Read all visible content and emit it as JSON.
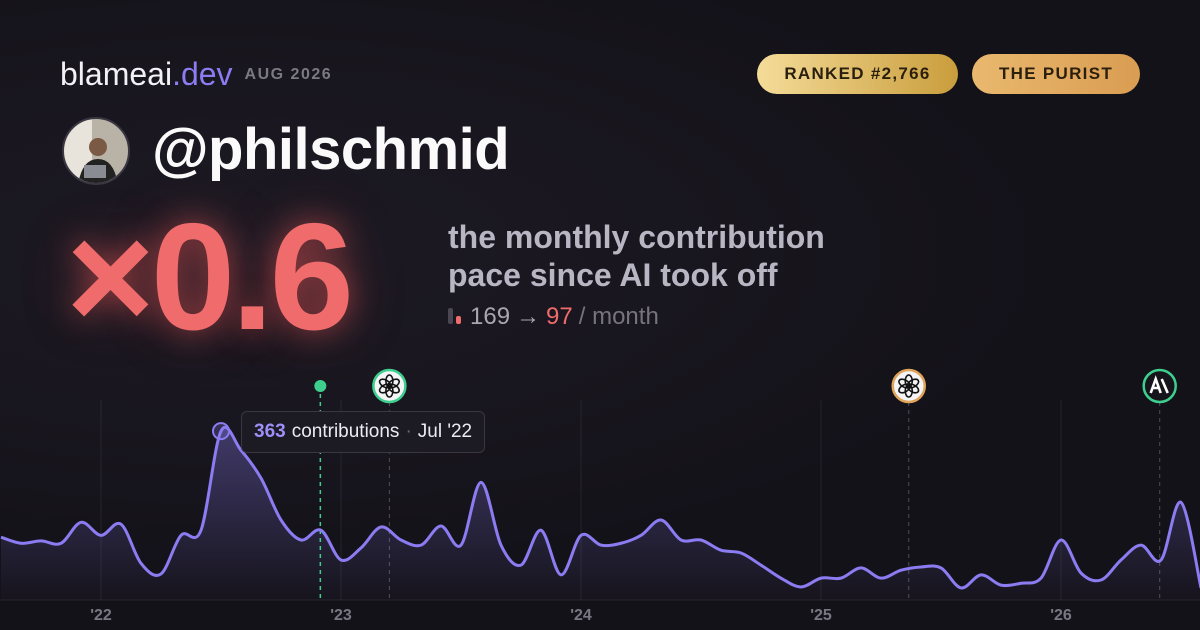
{
  "brand": {
    "name": "blameai",
    "tld": ".dev",
    "date": "AUG 2026"
  },
  "badges": [
    "RANKED #2,766",
    "THE PURIST"
  ],
  "handle": "@philschmid",
  "multiplier": "×0.6",
  "description": "the monthly contribution pace since AI took off",
  "pace": {
    "before": 169,
    "arrow": "→",
    "after": 97,
    "unit": "/ month"
  },
  "chart_data": {
    "type": "line",
    "x": [
      "2021-08",
      "2021-09",
      "2021-10",
      "2021-11",
      "2021-12",
      "2022-01",
      "2022-02",
      "2022-03",
      "2022-04",
      "2022-05",
      "2022-06",
      "2022-07",
      "2022-08",
      "2022-09",
      "2022-10",
      "2022-11",
      "2022-12",
      "2023-01",
      "2023-02",
      "2023-03",
      "2023-04",
      "2023-05",
      "2023-06",
      "2023-07",
      "2023-08",
      "2023-09",
      "2023-10",
      "2023-11",
      "2023-12",
      "2024-01",
      "2024-02",
      "2024-03",
      "2024-04",
      "2024-05",
      "2024-06",
      "2024-07",
      "2024-08",
      "2024-09",
      "2024-10",
      "2024-11",
      "2024-12",
      "2025-01",
      "2025-02",
      "2025-03",
      "2025-04",
      "2025-05",
      "2025-06",
      "2025-07",
      "2025-08",
      "2025-09",
      "2025-10",
      "2025-11",
      "2025-12",
      "2026-01",
      "2026-02",
      "2026-03",
      "2026-04",
      "2026-05",
      "2026-06",
      "2026-07",
      "2026-08"
    ],
    "series": [
      {
        "name": "contributions",
        "color": "#8c7cf2",
        "values": [
          135,
          122,
          127,
          122,
          167,
          139,
          163,
          79,
          56,
          139,
          150,
          363,
          322,
          262,
          172,
          129,
          150,
          86,
          112,
          157,
          129,
          118,
          159,
          118,
          253,
          118,
          75,
          150,
          54,
          139,
          118,
          122,
          139,
          172,
          129,
          129,
          107,
          101,
          75,
          47,
          28,
          47,
          47,
          69,
          47,
          64,
          71,
          69,
          26,
          54,
          32,
          36,
          47,
          129,
          58,
          43,
          86,
          118,
          86,
          210,
          26
        ]
      }
    ],
    "ylim": [
      0,
      430
    ],
    "xticks": [
      {
        "value": "2022-01",
        "label": "'22"
      },
      {
        "value": "2023-01",
        "label": "'23"
      },
      {
        "value": "2024-01",
        "label": "'24"
      },
      {
        "value": "2025-01",
        "label": "'25"
      },
      {
        "value": "2026-01",
        "label": "'26"
      }
    ],
    "grid": true,
    "markers": [
      {
        "x": "2022-11-30",
        "icon": "dot",
        "color": "#3ecf8e"
      },
      {
        "x": "2023-03-14",
        "icon": "openai",
        "color": "#3ecf8e"
      },
      {
        "x": "2025-05-13",
        "icon": "openai",
        "color": "#e0a45a"
      },
      {
        "x": "2026-05-30",
        "icon": "anthropic",
        "color": "#3ecf8e"
      }
    ],
    "tooltip": {
      "index": 11,
      "text": "contributions",
      "separator": "·",
      "date": "Jul '22"
    }
  }
}
